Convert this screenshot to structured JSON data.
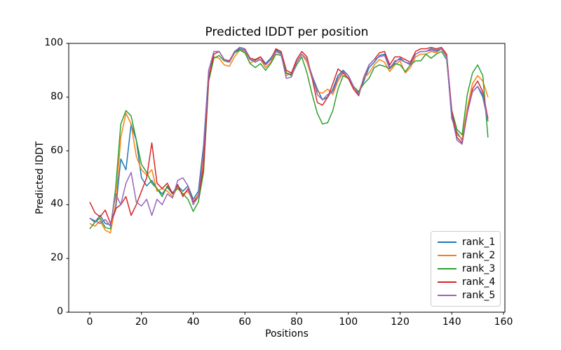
{
  "figure": {
    "title": "Predicted lDDT per position",
    "xlabel": "Positions",
    "ylabel": "Predicted lDDT",
    "background_color": "#ffffff",
    "spine_color": "#000000"
  },
  "chart_data": {
    "type": "line",
    "title": "Predicted lDDT per position",
    "xlabel": "Positions",
    "ylabel": "Predicted lDDT",
    "xlim": [
      -8,
      160.5
    ],
    "ylim": [
      0,
      100
    ],
    "x_ticks": [
      0,
      20,
      40,
      60,
      80,
      100,
      120,
      140,
      160
    ],
    "y_ticks": [
      0,
      20,
      40,
      60,
      80,
      100
    ],
    "grid": false,
    "legend_position": "lower right",
    "x": [
      0,
      2,
      4,
      6,
      8,
      10,
      12,
      14,
      16,
      18,
      20,
      22,
      24,
      26,
      28,
      30,
      32,
      34,
      36,
      38,
      40,
      42,
      44,
      46,
      48,
      50,
      52,
      54,
      56,
      58,
      60,
      62,
      64,
      66,
      68,
      70,
      72,
      74,
      76,
      78,
      80,
      82,
      84,
      86,
      88,
      90,
      92,
      94,
      96,
      98,
      100,
      102,
      104,
      106,
      108,
      110,
      112,
      114,
      116,
      118,
      120,
      122,
      124,
      126,
      128,
      130,
      132,
      134,
      136,
      138,
      140,
      142,
      144,
      146,
      148,
      150,
      152,
      154
    ],
    "series": [
      {
        "name": "rank_1",
        "color": "#1f77b4",
        "values": [
          35,
          33.5,
          36,
          33,
          32.5,
          38,
          57,
          53,
          70,
          64,
          50,
          47,
          49,
          46,
          44,
          46.5,
          44,
          47,
          45,
          47,
          42,
          45,
          62,
          90,
          96,
          97,
          94,
          93.5,
          96.5,
          98,
          97.5,
          94,
          93.5,
          95,
          92.5,
          94.5,
          97.5,
          96.5,
          89,
          88.5,
          93,
          96,
          94,
          88,
          83,
          79,
          80,
          83,
          88,
          90,
          88,
          84,
          81.5,
          86,
          91,
          93,
          95.5,
          96,
          91,
          93,
          94.5,
          93,
          92.5,
          96,
          97,
          97,
          98,
          97.5,
          98,
          95,
          72,
          67,
          64,
          75,
          82,
          84,
          80,
          71
        ]
      },
      {
        "name": "rank_2",
        "color": "#ff7f0e",
        "values": [
          33,
          32,
          34,
          30.5,
          29.5,
          40,
          65,
          74,
          70,
          58,
          53,
          51,
          53,
          45,
          46,
          45,
          43,
          46.5,
          44,
          45,
          41,
          44,
          57,
          88,
          95,
          94.5,
          92,
          91.5,
          95,
          97.5,
          97,
          92.5,
          94,
          94,
          91,
          93,
          97,
          96,
          88,
          89,
          93,
          96,
          93,
          87,
          82,
          81.5,
          83,
          81,
          86,
          89,
          87,
          83.5,
          82,
          87,
          89,
          92,
          94,
          93,
          89.5,
          92,
          93.5,
          89,
          91,
          95,
          96,
          96,
          97,
          96.5,
          98,
          96,
          74,
          66,
          64.5,
          76,
          85,
          88,
          86,
          80
        ]
      },
      {
        "name": "rank_3",
        "color": "#2ca02c",
        "values": [
          31,
          33.5,
          35,
          31.5,
          31,
          46,
          70,
          75,
          73,
          64,
          55,
          52,
          48,
          46,
          43,
          47,
          44.5,
          46,
          44,
          42,
          37.5,
          41,
          52,
          86,
          94.5,
          95.5,
          93.5,
          93,
          96.5,
          97.5,
          96.5,
          92.5,
          91,
          92.5,
          90,
          92.5,
          96,
          95.5,
          89,
          88,
          92,
          95,
          89,
          81,
          74,
          70,
          70.5,
          75,
          83,
          88,
          87,
          84,
          82,
          85,
          87,
          91,
          92,
          91.5,
          90.5,
          92.5,
          92,
          89.5,
          92,
          93.5,
          93.5,
          96,
          94.5,
          96,
          97,
          94,
          75,
          68,
          66,
          81,
          89,
          92,
          88,
          65
        ]
      },
      {
        "name": "rank_4",
        "color": "#d62728",
        "values": [
          41,
          37,
          35.5,
          38,
          33,
          38.5,
          40,
          43,
          36,
          40,
          45,
          50,
          63,
          48,
          46,
          48,
          44,
          47.5,
          43,
          46,
          41,
          43,
          54,
          87,
          96,
          97,
          94,
          93.5,
          97,
          98.5,
          98,
          94.5,
          94,
          95,
          92,
          94,
          98,
          97,
          90,
          89,
          94,
          97,
          95,
          87,
          78,
          77,
          80,
          85,
          90.5,
          89,
          87,
          83,
          80.5,
          87.5,
          92,
          94,
          96.5,
          97,
          92,
          95,
          95,
          94,
          93,
          97,
          98,
          98,
          98.5,
          98,
          98.5,
          96,
          75,
          65,
          63,
          74,
          83,
          86,
          82,
          72
        ]
      },
      {
        "name": "rank_5",
        "color": "#9467bd",
        "values": [
          35,
          34,
          33,
          34.5,
          32,
          44,
          40,
          48,
          52,
          41,
          39.5,
          42,
          36,
          42,
          40,
          44,
          42.5,
          49,
          50,
          47,
          40,
          43,
          60,
          90,
          97,
          97,
          94,
          93,
          97,
          98.5,
          98,
          94,
          93,
          94,
          92,
          94,
          97,
          96,
          87,
          87.5,
          93,
          96,
          94,
          88,
          81,
          79,
          81,
          82,
          87,
          89.5,
          88,
          84,
          81,
          87,
          92,
          94,
          95,
          95.5,
          90.5,
          93.5,
          94,
          93,
          92,
          96,
          97,
          97,
          97.5,
          97,
          98,
          95,
          73,
          64,
          62.5,
          74,
          82,
          84,
          81,
          71
        ]
      }
    ]
  }
}
